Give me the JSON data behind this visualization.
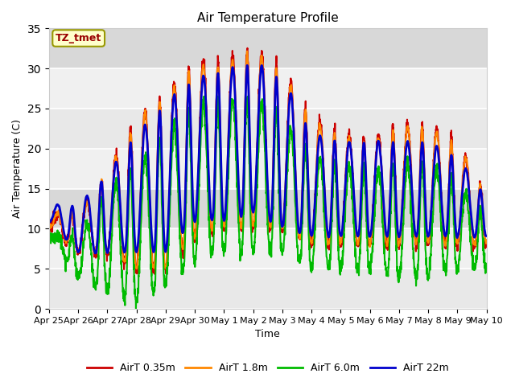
{
  "title": "Air Temperature Profile",
  "xlabel": "Time",
  "ylabel": "Air Temperature (C)",
  "ylim": [
    0,
    35
  ],
  "annotation_text": "TZ_tmet",
  "annotation_bg": "#FFFFCC",
  "annotation_border": "#999900",
  "annotation_text_color": "#990000",
  "background_color": "#ffffff",
  "plot_bg_color": "#e8e8e8",
  "grid_color": "#ffffff",
  "series": [
    {
      "label": "AirT 0.35m",
      "color": "#cc0000",
      "lw": 1.5
    },
    {
      "label": "AirT 1.8m",
      "color": "#ff8800",
      "lw": 1.5
    },
    {
      "label": "AirT 6.0m",
      "color": "#00bb00",
      "lw": 1.5
    },
    {
      "label": "AirT 22m",
      "color": "#0000cc",
      "lw": 2.0
    }
  ],
  "yticks": [
    0,
    5,
    10,
    15,
    20,
    25,
    30,
    35
  ],
  "xtick_labels": [
    "Apr 25",
    "Apr 26",
    "Apr 27",
    "Apr 28",
    "Apr 29",
    "Apr 30",
    "May 1",
    "May 2",
    "May 3",
    "May 4",
    "May 5",
    "May 6",
    "May 7",
    "May 8",
    "May 9",
    "May 10"
  ],
  "xtick_positions": [
    0,
    1,
    2,
    3,
    4,
    5,
    6,
    7,
    8,
    9,
    10,
    11,
    12,
    13,
    14,
    15
  ]
}
